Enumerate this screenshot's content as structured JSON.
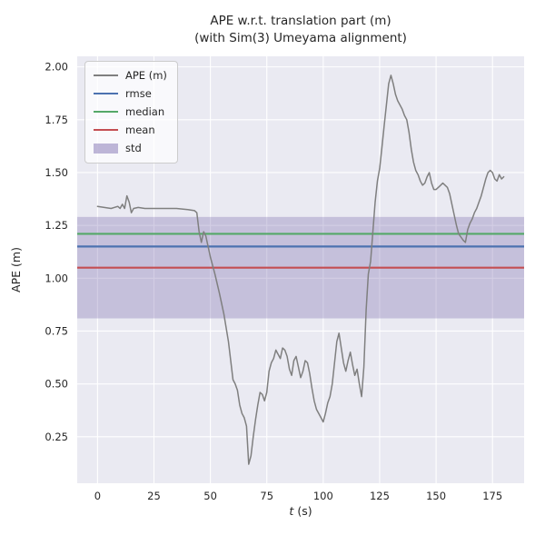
{
  "chart_data": {
    "type": "line",
    "title": "APE w.r.t. translation part (m)",
    "subtitle": "(with Sim(3) Umeyama alignment)",
    "xlabel": "t (s)",
    "xlabel_var": "t",
    "xlabel_rest": "(s)",
    "ylabel": "APE (m)",
    "xlim": [
      -9,
      189
    ],
    "ylim": [
      0.03,
      2.05
    ],
    "xticks": [
      0,
      25,
      50,
      75,
      100,
      125,
      150,
      175
    ],
    "yticks": [
      0.25,
      0.5,
      0.75,
      1.0,
      1.25,
      1.5,
      1.75,
      2.0
    ],
    "grid": true,
    "legend_position": "upper-left",
    "stats": {
      "rmse": 1.15,
      "median": 1.21,
      "mean": 1.05,
      "std_band": [
        0.81,
        1.29
      ]
    },
    "legend": [
      {
        "label": "APE (m)",
        "color": "#7f7f7f",
        "type": "thinline"
      },
      {
        "label": "rmse",
        "color": "#4c72b0",
        "type": "line"
      },
      {
        "label": "median",
        "color": "#55a868",
        "type": "line"
      },
      {
        "label": "mean",
        "color": "#c44e52",
        "type": "line"
      },
      {
        "label": "std",
        "color": "#8172b2",
        "type": "patch"
      }
    ],
    "colors": {
      "ape": "#7f7f7f",
      "rmse": "#4c72b0",
      "median": "#55a868",
      "mean": "#c44e52",
      "std_fill": "#8172b2",
      "std_opacity": 0.35,
      "plot_bg": "#eaeaf2",
      "grid": "#ffffff",
      "text": "#262626"
    },
    "series": {
      "name": "APE (m)",
      "x": [
        0,
        3,
        6,
        9,
        10,
        11,
        12,
        13,
        14,
        15,
        16,
        18,
        21,
        25,
        30,
        35,
        40,
        43,
        44,
        45,
        46,
        47,
        48,
        49,
        50,
        52,
        54,
        56,
        58,
        60,
        61,
        62,
        63,
        64,
        65,
        66,
        67,
        68,
        69,
        70,
        71,
        72,
        73,
        74,
        75,
        76,
        77,
        78,
        79,
        80,
        81,
        82,
        83,
        84,
        85,
        86,
        87,
        88,
        89,
        90,
        91,
        92,
        93,
        94,
        95,
        96,
        97,
        99,
        100,
        101,
        102,
        103,
        104,
        105,
        106,
        107,
        108,
        109,
        110,
        111,
        112,
        113,
        114,
        115,
        116,
        117,
        118,
        119,
        120,
        121,
        122,
        123,
        124,
        125,
        126,
        127,
        128,
        129,
        130,
        131,
        132,
        133,
        135,
        136,
        137,
        138,
        139,
        140,
        141,
        142,
        143,
        144,
        145,
        146,
        147,
        148,
        149,
        150,
        151,
        152,
        153,
        154,
        155,
        156,
        157,
        158,
        159,
        160,
        162,
        163,
        164,
        165,
        166,
        167,
        168,
        169,
        170,
        171,
        172,
        173,
        174,
        175,
        176,
        177,
        178,
        179,
        180
      ],
      "y": [
        1.34,
        1.335,
        1.33,
        1.34,
        1.33,
        1.35,
        1.33,
        1.39,
        1.36,
        1.31,
        1.33,
        1.335,
        1.33,
        1.33,
        1.33,
        1.33,
        1.325,
        1.32,
        1.31,
        1.22,
        1.17,
        1.22,
        1.2,
        1.15,
        1.1,
        1.02,
        0.93,
        0.83,
        0.7,
        0.52,
        0.5,
        0.47,
        0.4,
        0.36,
        0.34,
        0.3,
        0.12,
        0.16,
        0.25,
        0.33,
        0.4,
        0.46,
        0.45,
        0.42,
        0.46,
        0.56,
        0.6,
        0.62,
        0.66,
        0.64,
        0.62,
        0.67,
        0.66,
        0.63,
        0.57,
        0.54,
        0.61,
        0.63,
        0.58,
        0.53,
        0.56,
        0.61,
        0.6,
        0.55,
        0.48,
        0.42,
        0.38,
        0.34,
        0.32,
        0.36,
        0.41,
        0.44,
        0.5,
        0.6,
        0.7,
        0.74,
        0.67,
        0.6,
        0.56,
        0.61,
        0.65,
        0.59,
        0.54,
        0.57,
        0.5,
        0.44,
        0.58,
        0.85,
        1.02,
        1.08,
        1.22,
        1.36,
        1.46,
        1.52,
        1.62,
        1.72,
        1.82,
        1.92,
        1.96,
        1.92,
        1.87,
        1.84,
        1.8,
        1.77,
        1.75,
        1.69,
        1.61,
        1.55,
        1.51,
        1.49,
        1.46,
        1.44,
        1.45,
        1.48,
        1.5,
        1.45,
        1.42,
        1.42,
        1.43,
        1.44,
        1.45,
        1.44,
        1.43,
        1.4,
        1.35,
        1.3,
        1.25,
        1.21,
        1.18,
        1.17,
        1.23,
        1.26,
        1.28,
        1.31,
        1.33,
        1.36,
        1.39,
        1.43,
        1.47,
        1.5,
        1.51,
        1.5,
        1.47,
        1.46,
        1.49,
        1.47,
        1.48
      ]
    }
  }
}
